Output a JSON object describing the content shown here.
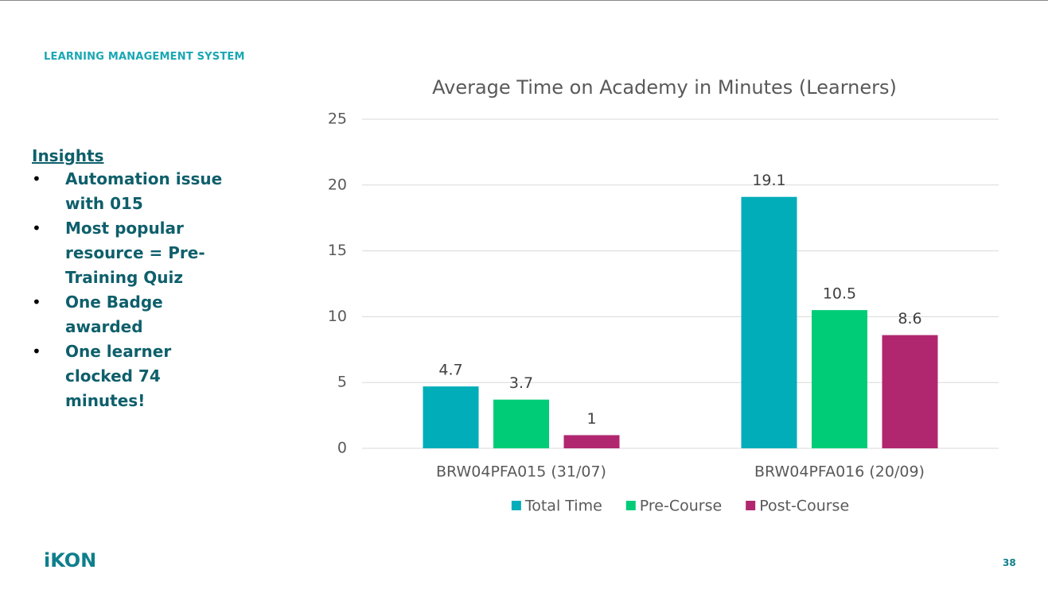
{
  "header": "LEARNING MANAGEMENT SYSTEM",
  "insights": {
    "title": "Insights",
    "items": [
      "Automation issue with 015",
      "Most popular resource = Pre-Training Quiz",
      "One Badge awarded",
      "One learner clocked 74 minutes!"
    ]
  },
  "logo": "iKON",
  "page_number": "38",
  "chart_data": {
    "type": "bar",
    "title": "Average Time on Academy in Minutes (Learners)",
    "categories": [
      "BRW04PFA015 (31/07)",
      "BRW04PFA016 (20/09)"
    ],
    "series": [
      {
        "name": "Total Time",
        "color": "#00adb9",
        "values": [
          4.7,
          19.1
        ]
      },
      {
        "name": "Pre-Course",
        "color": "#00cc78",
        "values": [
          3.7,
          10.5
        ]
      },
      {
        "name": "Post-Course",
        "color": "#b0276f",
        "values": [
          1,
          8.6
        ]
      }
    ],
    "ylim": [
      0,
      25
    ],
    "yticks": [
      0,
      5,
      10,
      15,
      20,
      25
    ],
    "grid": true,
    "legend": "bottom"
  }
}
